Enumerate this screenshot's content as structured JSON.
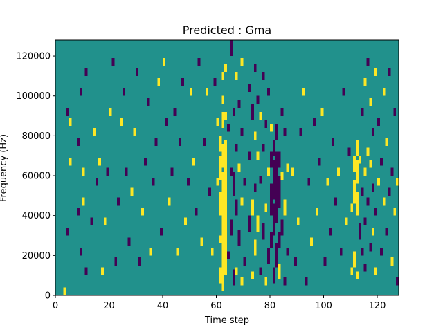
{
  "chart_data": {
    "type": "heatmap",
    "title": "Predicted : Gma",
    "xlabel": "Time step",
    "ylabel": "Frequency (Hz)",
    "xlim": [
      0,
      128
    ],
    "ylim": [
      0,
      128000
    ],
    "x_ticks": [
      0,
      20,
      40,
      60,
      80,
      100,
      120
    ],
    "y_ticks": [
      0,
      20000,
      40000,
      60000,
      80000,
      100000,
      120000
    ],
    "x_tick_labels": [
      "0",
      "20",
      "40",
      "60",
      "80",
      "100",
      "120"
    ],
    "y_tick_labels": [
      "0",
      "20000",
      "40000",
      "60000",
      "80000",
      "100000",
      "120000"
    ],
    "grid": false,
    "colormap": "viridis",
    "value_levels": [
      0,
      1,
      2
    ],
    "colors": {
      "low": "#440154",
      "mid": "#21918c",
      "high": "#fde725"
    },
    "background_value": 1,
    "bin_width_hz": 4000,
    "cells": [
      [
        3,
        0,
        1,
        2
      ],
      [
        4,
        30000,
        1,
        0
      ],
      [
        4,
        90000,
        1,
        0
      ],
      [
        5,
        65000,
        1,
        2
      ],
      [
        5,
        85000,
        1,
        2
      ],
      [
        8,
        40000,
        1,
        0
      ],
      [
        8,
        75000,
        1,
        0
      ],
      [
        9,
        20000,
        1,
        0
      ],
      [
        9,
        100000,
        1,
        0
      ],
      [
        10,
        45000,
        1,
        2
      ],
      [
        10,
        60000,
        1,
        2
      ],
      [
        11,
        10000,
        1,
        0
      ],
      [
        11,
        110000,
        1,
        0
      ],
      [
        13,
        35000,
        1,
        0
      ],
      [
        14,
        80000,
        1,
        2
      ],
      [
        15,
        55000,
        1,
        0
      ],
      [
        16,
        65000,
        1,
        2
      ],
      [
        17,
        10000,
        1,
        2
      ],
      [
        18,
        35000,
        1,
        2
      ],
      [
        19,
        60000,
        1,
        0
      ],
      [
        20,
        90000,
        1,
        2
      ],
      [
        21,
        115000,
        1,
        0
      ],
      [
        22,
        15000,
        1,
        0
      ],
      [
        23,
        45000,
        1,
        0
      ],
      [
        24,
        85000,
        1,
        2
      ],
      [
        25,
        100000,
        1,
        0
      ],
      [
        26,
        60000,
        1,
        0
      ],
      [
        27,
        25000,
        1,
        0
      ],
      [
        28,
        50000,
        1,
        2
      ],
      [
        29,
        80000,
        1,
        2
      ],
      [
        30,
        110000,
        1,
        0
      ],
      [
        31,
        15000,
        1,
        0
      ],
      [
        32,
        40000,
        1,
        2
      ],
      [
        33,
        65000,
        1,
        0
      ],
      [
        34,
        95000,
        1,
        0
      ],
      [
        35,
        20000,
        1,
        2
      ],
      [
        36,
        55000,
        1,
        0
      ],
      [
        37,
        75000,
        1,
        0
      ],
      [
        38,
        105000,
        1,
        2
      ],
      [
        39,
        30000,
        1,
        0
      ],
      [
        40,
        115000,
        1,
        2
      ],
      [
        41,
        85000,
        1,
        0
      ],
      [
        42,
        45000,
        1,
        2
      ],
      [
        43,
        60000,
        1,
        0
      ],
      [
        44,
        90000,
        1,
        0
      ],
      [
        45,
        20000,
        1,
        2
      ],
      [
        46,
        75000,
        1,
        0
      ],
      [
        47,
        105000,
        1,
        0
      ],
      [
        48,
        35000,
        1,
        2
      ],
      [
        49,
        55000,
        1,
        0
      ],
      [
        50,
        100000,
        1,
        2
      ],
      [
        51,
        65000,
        1,
        2
      ],
      [
        52,
        40000,
        1,
        0
      ],
      [
        53,
        115000,
        1,
        0
      ],
      [
        54,
        25000,
        1,
        2
      ],
      [
        55,
        75000,
        1,
        0
      ],
      [
        56,
        100000,
        1,
        2
      ],
      [
        57,
        50000,
        1,
        0
      ],
      [
        58,
        20000,
        1,
        2
      ],
      [
        59,
        105000,
        1,
        0
      ],
      [
        60,
        55000,
        1,
        2
      ],
      [
        60,
        85000,
        1,
        2
      ],
      [
        61,
        6000,
        2,
        2
      ],
      [
        61,
        26000,
        1,
        2
      ],
      [
        61,
        40000,
        3,
        2
      ],
      [
        61,
        58000,
        3,
        2
      ],
      [
        61,
        72000,
        2,
        2
      ],
      [
        62,
        2000,
        3,
        2
      ],
      [
        62,
        14000,
        4,
        2
      ],
      [
        62,
        30000,
        5,
        2
      ],
      [
        62,
        46000,
        4,
        2
      ],
      [
        62,
        64000,
        3,
        2
      ],
      [
        62,
        84000,
        2,
        2
      ],
      [
        62,
        96000,
        1,
        2
      ],
      [
        62,
        108000,
        1,
        2
      ],
      [
        63,
        10000,
        3,
        2
      ],
      [
        63,
        22000,
        4,
        2
      ],
      [
        63,
        38000,
        6,
        2
      ],
      [
        63,
        56000,
        4,
        2
      ],
      [
        63,
        70000,
        2,
        2
      ],
      [
        63,
        88000,
        1,
        2
      ],
      [
        63,
        112000,
        1,
        2
      ],
      [
        64,
        18000,
        1,
        0
      ],
      [
        64,
        82000,
        1,
        0
      ],
      [
        65,
        30000,
        2,
        0
      ],
      [
        65,
        60000,
        1,
        0
      ],
      [
        65,
        120000,
        2,
        0
      ],
      [
        66,
        5000,
        2,
        0
      ],
      [
        66,
        50000,
        3,
        0
      ],
      [
        66,
        90000,
        1,
        0
      ],
      [
        67,
        10000,
        1,
        2
      ],
      [
        67,
        40000,
        2,
        0
      ],
      [
        67,
        72000,
        1,
        0
      ],
      [
        67,
        108000,
        1,
        2
      ],
      [
        68,
        25000,
        2,
        0
      ],
      [
        68,
        62000,
        1,
        2
      ],
      [
        68,
        94000,
        1,
        0
      ],
      [
        69,
        5000,
        1,
        2
      ],
      [
        69,
        45000,
        1,
        2
      ],
      [
        69,
        80000,
        1,
        0
      ],
      [
        69,
        115000,
        1,
        2
      ],
      [
        70,
        15000,
        1,
        0
      ],
      [
        70,
        55000,
        1,
        0
      ],
      [
        72,
        32000,
        2,
        0
      ],
      [
        72,
        68000,
        1,
        0
      ],
      [
        72,
        102000,
        1,
        0
      ],
      [
        73,
        8000,
        1,
        2
      ],
      [
        73,
        40000,
        2,
        2
      ],
      [
        73,
        88000,
        2,
        0
      ],
      [
        74,
        20000,
        2,
        2
      ],
      [
        74,
        52000,
        1,
        0
      ],
      [
        74,
        78000,
        1,
        2
      ],
      [
        74,
        112000,
        1,
        0
      ],
      [
        75,
        32000,
        2,
        2
      ],
      [
        75,
        68000,
        1,
        2
      ],
      [
        75,
        96000,
        1,
        0
      ],
      [
        76,
        10000,
        1,
        0
      ],
      [
        76,
        56000,
        1,
        0
      ],
      [
        76,
        88000,
        1,
        2
      ],
      [
        77,
        28000,
        2,
        0
      ],
      [
        77,
        72000,
        1,
        0
      ],
      [
        77,
        108000,
        1,
        0
      ],
      [
        78,
        5000,
        1,
        2
      ],
      [
        78,
        42000,
        1,
        2
      ],
      [
        78,
        84000,
        1,
        0
      ],
      [
        79,
        16000,
        2,
        0
      ],
      [
        79,
        60000,
        1,
        2
      ],
      [
        79,
        100000,
        1,
        0
      ],
      [
        80,
        24000,
        2,
        0
      ],
      [
        80,
        40000,
        4,
        0
      ],
      [
        80,
        64000,
        2,
        0
      ],
      [
        80,
        82000,
        1,
        2
      ],
      [
        81,
        6000,
        2,
        0
      ],
      [
        81,
        30000,
        4,
        0
      ],
      [
        81,
        48000,
        5,
        0
      ],
      [
        81,
        70000,
        2,
        0
      ],
      [
        82,
        14000,
        3,
        0
      ],
      [
        82,
        36000,
        5,
        0
      ],
      [
        82,
        56000,
        4,
        0
      ],
      [
        82,
        78000,
        2,
        0
      ],
      [
        83,
        8000,
        2,
        2
      ],
      [
        83,
        24000,
        2,
        0
      ],
      [
        83,
        44000,
        4,
        0
      ],
      [
        83,
        64000,
        2,
        0
      ],
      [
        84,
        30000,
        2,
        0
      ],
      [
        84,
        58000,
        1,
        2
      ],
      [
        84,
        90000,
        1,
        0
      ],
      [
        85,
        5000,
        1,
        0
      ],
      [
        85,
        40000,
        2,
        2
      ],
      [
        85,
        80000,
        1,
        0
      ],
      [
        86,
        20000,
        1,
        0
      ],
      [
        86,
        62000,
        1,
        2
      ],
      [
        88,
        60000,
        1,
        2
      ],
      [
        89,
        15000,
        1,
        0
      ],
      [
        90,
        35000,
        1,
        2
      ],
      [
        91,
        80000,
        1,
        0
      ],
      [
        92,
        100000,
        1,
        2
      ],
      [
        93,
        5000,
        1,
        0
      ],
      [
        94,
        55000,
        1,
        0
      ],
      [
        95,
        25000,
        1,
        2
      ],
      [
        96,
        85000,
        1,
        0
      ],
      [
        97,
        40000,
        1,
        2
      ],
      [
        98,
        65000,
        1,
        0
      ],
      [
        99,
        90000,
        1,
        2
      ],
      [
        100,
        15000,
        1,
        0
      ],
      [
        101,
        55000,
        1,
        2
      ],
      [
        102,
        30000,
        1,
        0
      ],
      [
        103,
        75000,
        1,
        0
      ],
      [
        104,
        45000,
        1,
        0
      ],
      [
        105,
        60000,
        1,
        2
      ],
      [
        106,
        20000,
        1,
        0
      ],
      [
        107,
        100000,
        1,
        0
      ],
      [
        108,
        35000,
        1,
        2
      ],
      [
        109,
        70000,
        1,
        0
      ],
      [
        110,
        10000,
        1,
        2
      ],
      [
        110,
        42000,
        1,
        2
      ],
      [
        111,
        14000,
        2,
        2
      ],
      [
        111,
        46000,
        3,
        2
      ],
      [
        111,
        62000,
        2,
        2
      ],
      [
        112,
        8000,
        1,
        2
      ],
      [
        112,
        40000,
        3,
        2
      ],
      [
        112,
        56000,
        3,
        2
      ],
      [
        112,
        70000,
        2,
        2
      ],
      [
        113,
        28000,
        2,
        0
      ],
      [
        113,
        66000,
        1,
        2
      ],
      [
        114,
        20000,
        1,
        0
      ],
      [
        114,
        50000,
        1,
        0
      ],
      [
        114,
        90000,
        1,
        0
      ],
      [
        115,
        12000,
        1,
        0
      ],
      [
        115,
        35000,
        1,
        0
      ],
      [
        115,
        60000,
        1,
        2
      ],
      [
        115,
        105000,
        1,
        2
      ],
      [
        116,
        45000,
        1,
        0
      ],
      [
        116,
        70000,
        1,
        2
      ],
      [
        116,
        115000,
        1,
        0
      ],
      [
        117,
        22000,
        1,
        0
      ],
      [
        117,
        64000,
        1,
        2
      ],
      [
        117,
        95000,
        1,
        2
      ],
      [
        118,
        30000,
        1,
        2
      ],
      [
        118,
        52000,
        1,
        0
      ],
      [
        118,
        80000,
        1,
        0
      ],
      [
        119,
        10000,
        1,
        2
      ],
      [
        119,
        40000,
        1,
        0
      ],
      [
        119,
        110000,
        1,
        2
      ],
      [
        120,
        55000,
        1,
        2
      ],
      [
        120,
        85000,
        1,
        0
      ],
      [
        121,
        20000,
        1,
        0
      ],
      [
        121,
        65000,
        1,
        0
      ],
      [
        122,
        45000,
        1,
        2
      ],
      [
        122,
        100000,
        1,
        2
      ],
      [
        123,
        30000,
        1,
        0
      ],
      [
        123,
        75000,
        1,
        2
      ],
      [
        124,
        50000,
        1,
        0
      ],
      [
        124,
        110000,
        1,
        0
      ],
      [
        125,
        15000,
        1,
        2
      ],
      [
        125,
        60000,
        1,
        0
      ],
      [
        126,
        40000,
        1,
        2
      ],
      [
        126,
        90000,
        1,
        0
      ],
      [
        127,
        5000,
        1,
        0
      ],
      [
        127,
        55000,
        1,
        2
      ]
    ]
  }
}
